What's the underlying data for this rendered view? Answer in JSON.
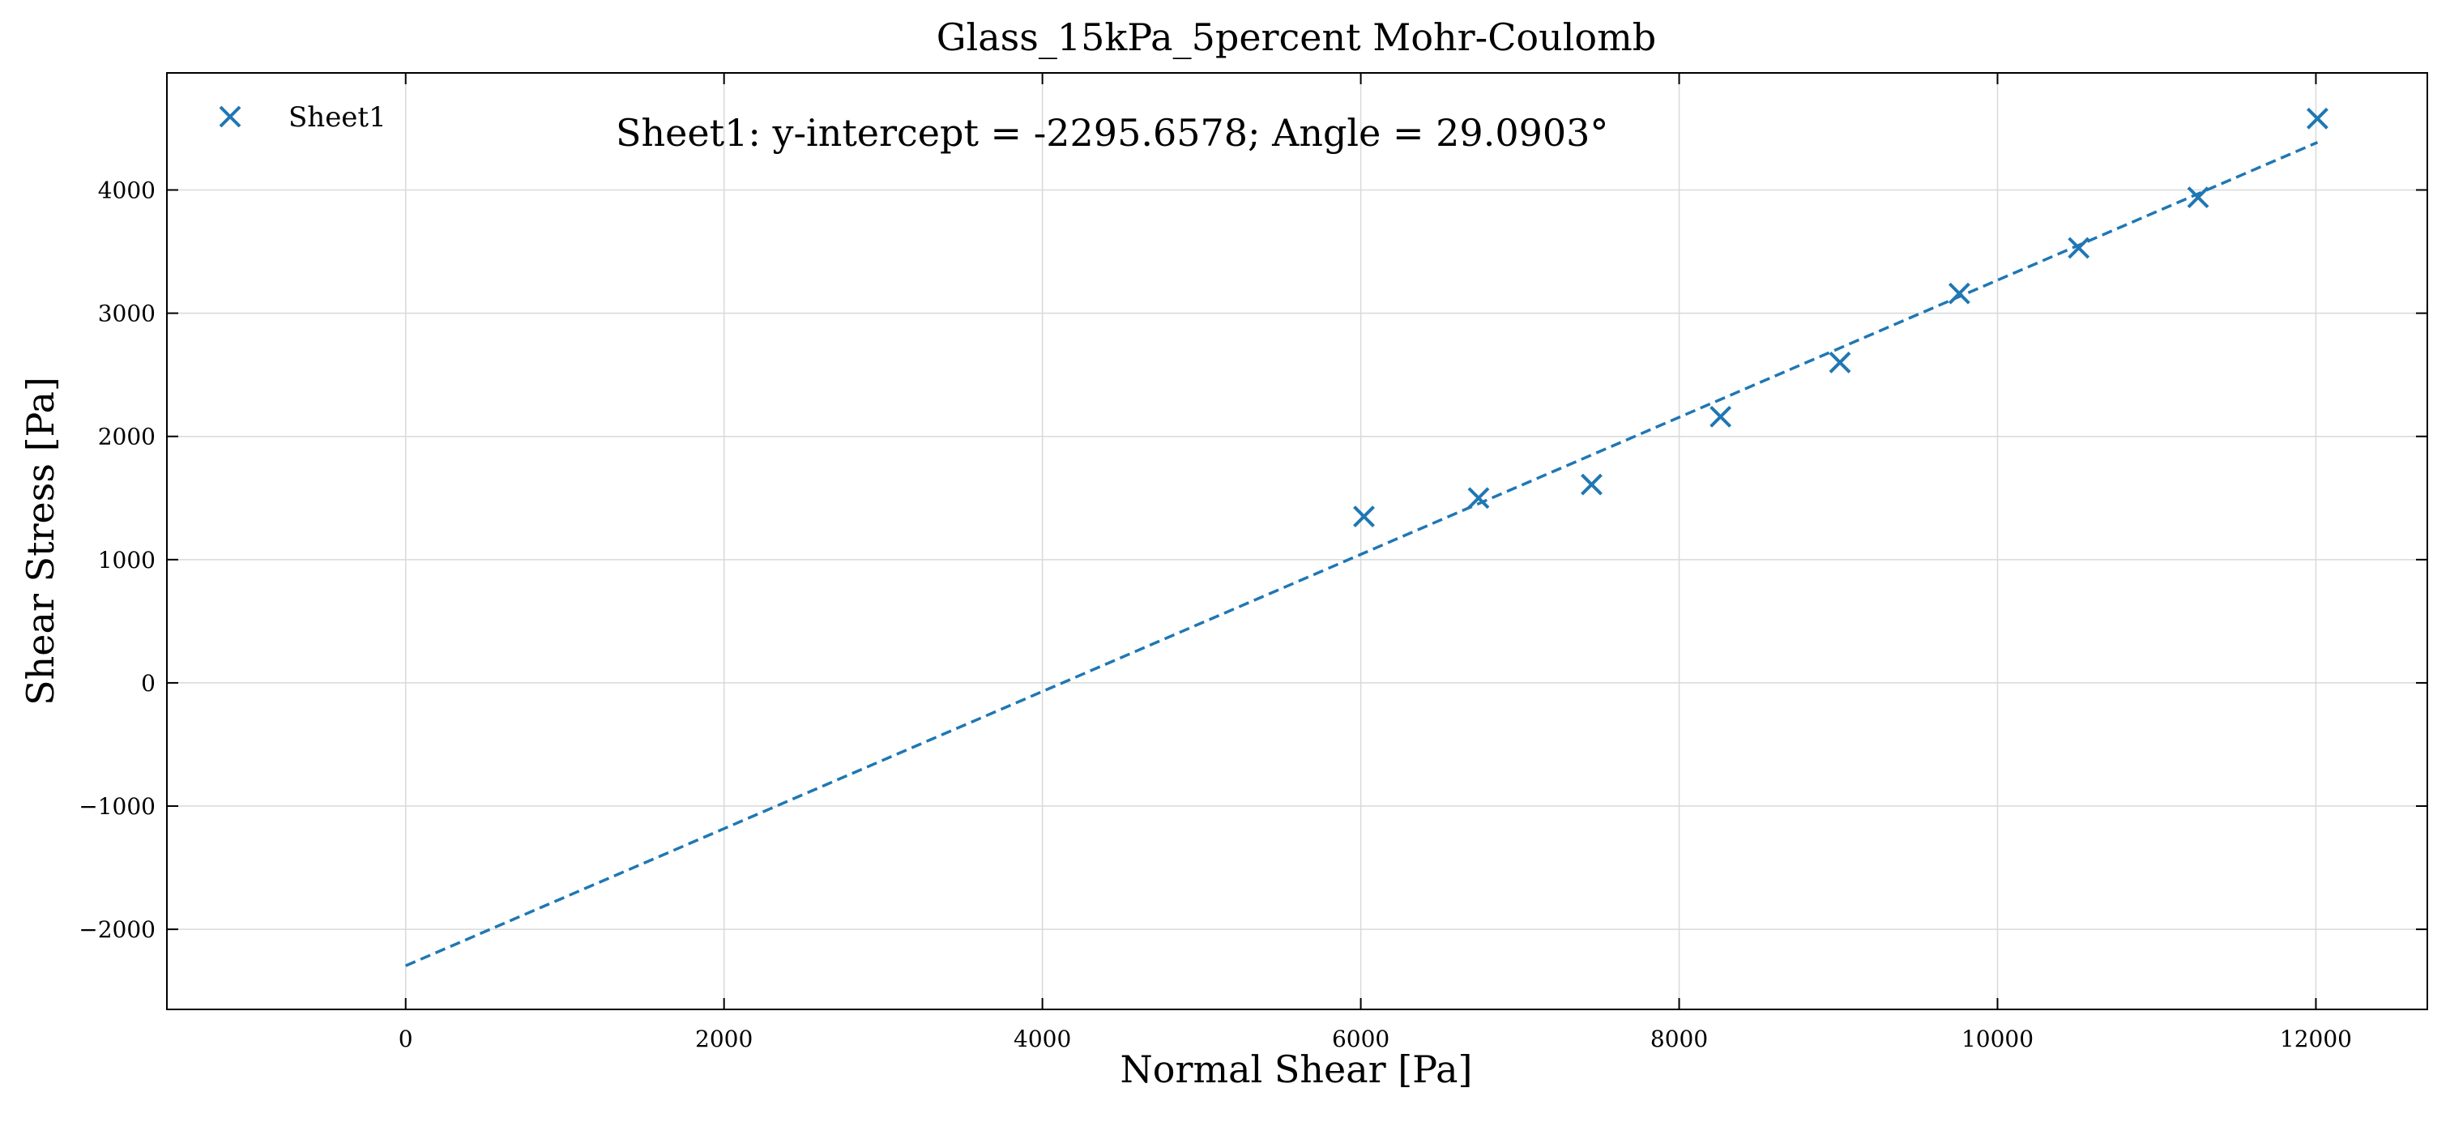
{
  "chart_data": {
    "type": "scatter",
    "title": "Glass_15kPa_5percent Mohr-Coulomb",
    "xlabel": "Normal Shear [Pa]",
    "ylabel": "Shear Stress [Pa]",
    "xlim": [
      -1500,
      12700
    ],
    "ylim": [
      -2650,
      4950
    ],
    "x_ticks": [
      0,
      2000,
      4000,
      6000,
      8000,
      10000,
      12000
    ],
    "x_tick_labels": [
      "0",
      "2000",
      "4000",
      "6000",
      "8000",
      "10000",
      "12000"
    ],
    "y_ticks": [
      -2000,
      -1000,
      0,
      1000,
      2000,
      3000,
      4000
    ],
    "y_tick_labels": [
      "−2000",
      "−1000",
      "0",
      "1000",
      "2000",
      "3000",
      "4000"
    ],
    "grid": true,
    "legend": "top-left",
    "series": [
      {
        "name": "Sheet1",
        "marker": "x",
        "color": "#1f77b4",
        "x": [
          6020,
          6740,
          7450,
          8260,
          9010,
          9760,
          10510,
          11260,
          12010
        ],
        "y": [
          1350,
          1500,
          1610,
          2160,
          2600,
          3160,
          3530,
          3940,
          4580
        ]
      }
    ],
    "fit_line": {
      "style": "dashed",
      "color": "#1f77b4",
      "intercept": -2295.6578,
      "angle_deg": 29.0903,
      "x_range": [
        0,
        12010
      ]
    },
    "annotation": "Sheet1: y-intercept = -2295.6578; Angle = 29.0903°"
  }
}
